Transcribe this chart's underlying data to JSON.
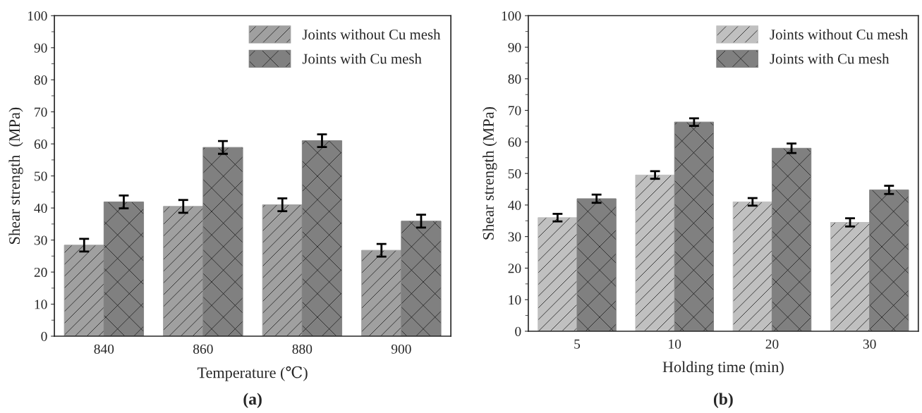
{
  "chart_data": [
    {
      "type": "bar",
      "xlabel": "Temperature (℃)",
      "ylabel": "Shear strength  (MPa)",
      "categories": [
        "840",
        "860",
        "880",
        "900"
      ],
      "ylim": [
        0,
        100
      ],
      "yticks": [
        0,
        10,
        20,
        30,
        40,
        50,
        60,
        70,
        80,
        90,
        100
      ],
      "legend": "top right",
      "annotations": [
        "(a)"
      ],
      "series": [
        {
          "name": "Joints without Cu mesh",
          "color": "#a0a0a0",
          "values": [
            28.4,
            40.5,
            41,
            26.8
          ],
          "errors": [
            2,
            2,
            2,
            2
          ]
        },
        {
          "name": "Joints with Cu mesh",
          "color": "#808080",
          "values": [
            41.9,
            58.9,
            61,
            35.9
          ],
          "errors": [
            2,
            2,
            2,
            2
          ]
        }
      ]
    },
    {
      "type": "bar",
      "xlabel": "Holding time (min)",
      "ylabel": "Shear strength (MPa)",
      "categories": [
        "5",
        "10",
        "20",
        "30"
      ],
      "ylim": [
        0,
        100
      ],
      "yticks": [
        0,
        10,
        20,
        30,
        40,
        50,
        60,
        70,
        80,
        90,
        100
      ],
      "legend": "top right",
      "annotations": [
        "(b)"
      ],
      "series": [
        {
          "name": "Joints without Cu mesh",
          "color": "#c0c0c0",
          "values": [
            36,
            49.5,
            41,
            34.5
          ],
          "errors": [
            1.2,
            1.2,
            1.2,
            1.3
          ]
        },
        {
          "name": "Joints with Cu mesh",
          "color": "#808080",
          "values": [
            42,
            66.3,
            58,
            44.8
          ],
          "errors": [
            1.3,
            1.2,
            1.5,
            1.3
          ]
        }
      ]
    }
  ]
}
